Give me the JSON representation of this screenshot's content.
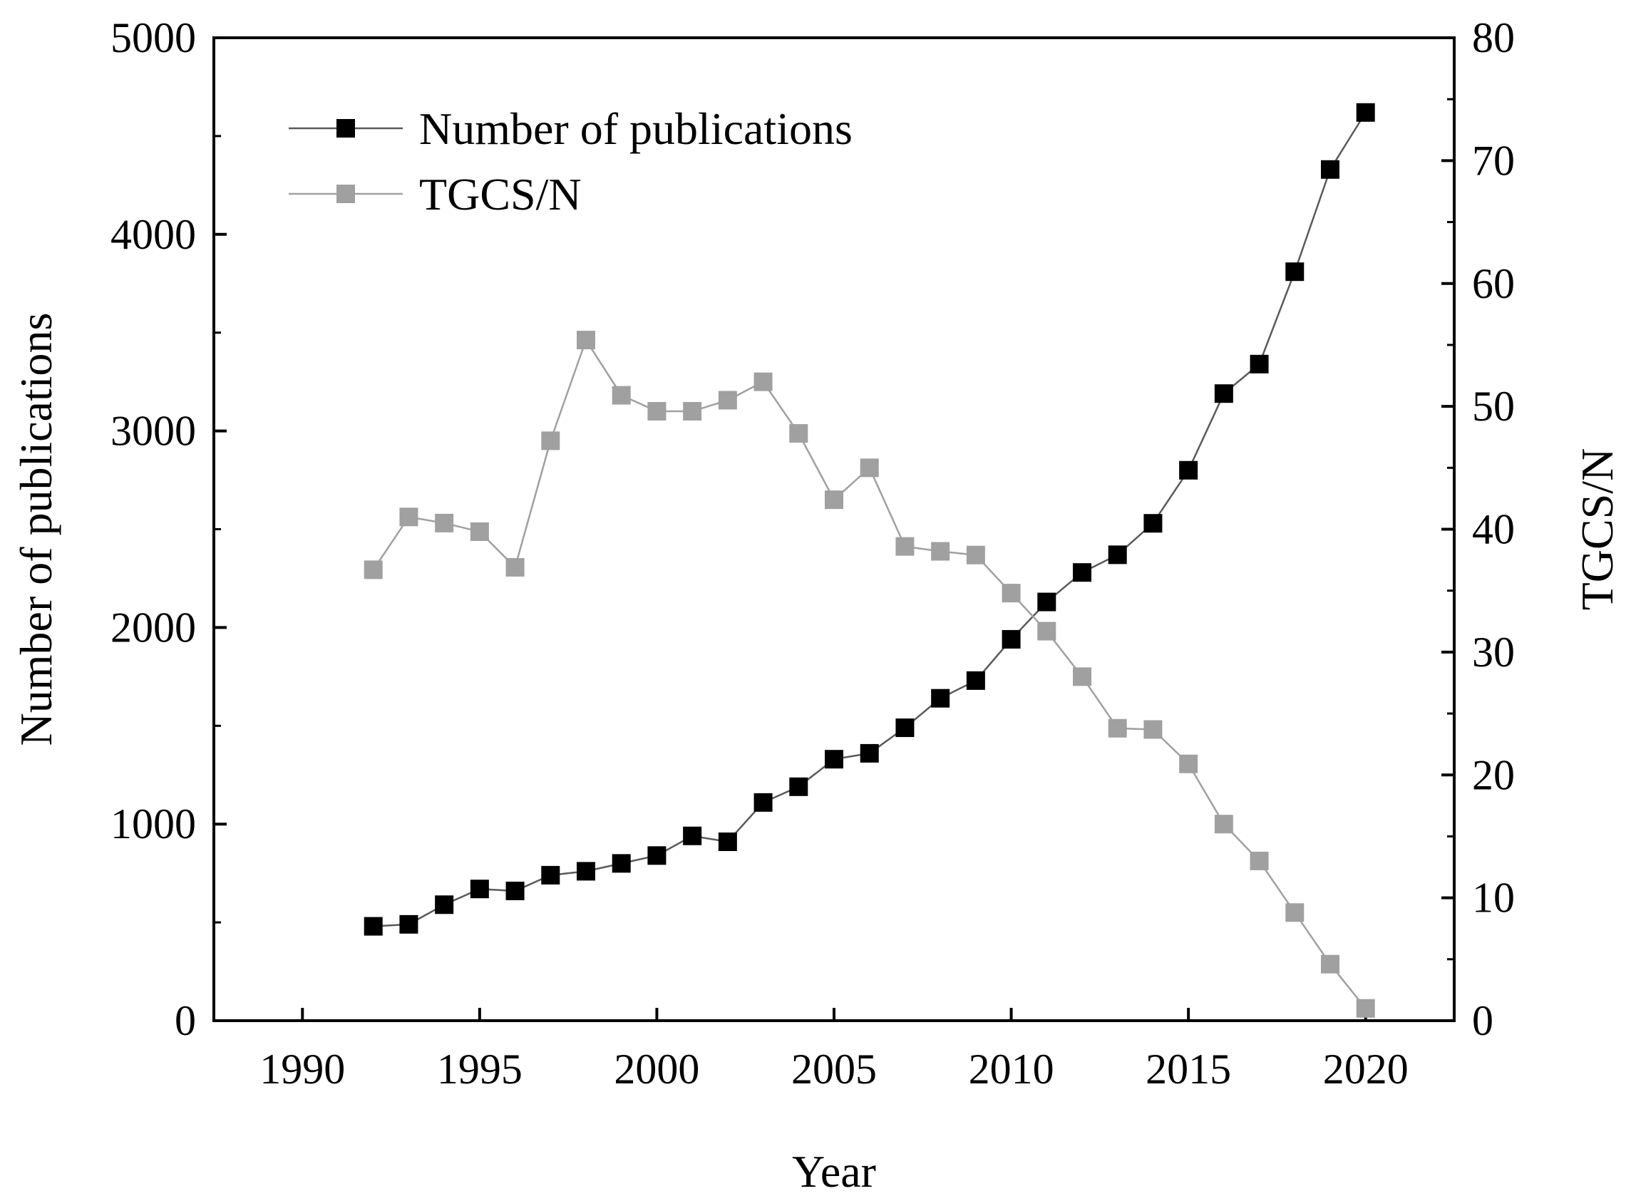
{
  "chart_data": {
    "type": "line",
    "title": "",
    "xlabel": "Year",
    "ylabel": "Number of publications",
    "y2label": "TGCS/N",
    "xlim": [
      1987.5,
      2022.5
    ],
    "ylim": [
      0,
      5000
    ],
    "y2lim": [
      0,
      80
    ],
    "x_ticks": [
      1990,
      1995,
      2000,
      2005,
      2010,
      2015,
      2020
    ],
    "x_tick_labels": [
      "1990",
      "1995",
      "2000",
      "2005",
      "2010",
      "2015",
      "2020"
    ],
    "y_ticks": [
      0,
      1000,
      2000,
      3000,
      4000,
      5000
    ],
    "y_tick_labels": [
      "0",
      "1000",
      "2000",
      "3000",
      "4000",
      "5000"
    ],
    "y2_ticks": [
      0,
      10,
      20,
      30,
      40,
      50,
      60,
      70,
      80
    ],
    "y2_tick_labels": [
      "0",
      "10",
      "20",
      "30",
      "40",
      "50",
      "60",
      "70",
      "80"
    ],
    "grid": false,
    "legend_position": "top-left",
    "x": [
      1992,
      1993,
      1994,
      1995,
      1996,
      1997,
      1998,
      1999,
      2000,
      2001,
      2002,
      2003,
      2004,
      2005,
      2006,
      2007,
      2008,
      2009,
      2010,
      2011,
      2012,
      2013,
      2014,
      2015,
      2016,
      2017,
      2018,
      2019,
      2020
    ],
    "series": [
      {
        "name": "Number of publications",
        "axis": "left",
        "color": "#000000",
        "line_color": "#5a5a5a",
        "values": [
          480,
          490,
          590,
          670,
          660,
          740,
          760,
          800,
          840,
          940,
          910,
          1110,
          1190,
          1330,
          1360,
          1490,
          1640,
          1730,
          1940,
          2130,
          2280,
          2370,
          2530,
          2800,
          3190,
          3340,
          3810,
          4330,
          4620
        ]
      },
      {
        "name": "TGCS/N",
        "axis": "right",
        "color": "#a0a0a0",
        "line_color": "#a0a0a0",
        "values": [
          36.7,
          41.0,
          40.5,
          39.8,
          36.9,
          47.2,
          55.4,
          50.9,
          49.6,
          49.6,
          50.5,
          52.0,
          47.8,
          42.4,
          45.0,
          38.6,
          38.2,
          37.9,
          34.8,
          31.7,
          28.0,
          23.8,
          23.7,
          20.9,
          16.0,
          13.0,
          8.8,
          4.6,
          1.0
        ]
      }
    ]
  }
}
